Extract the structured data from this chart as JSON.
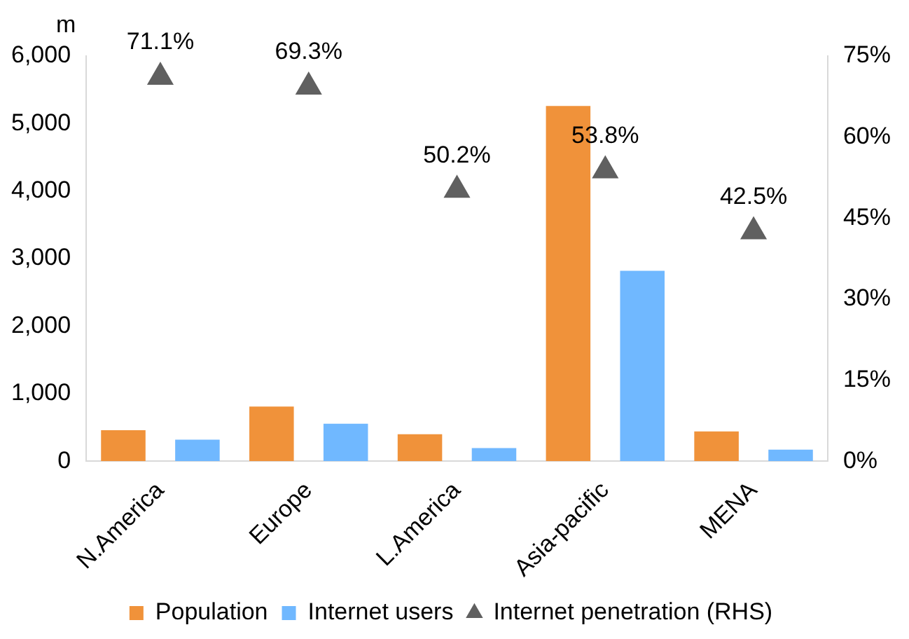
{
  "chart_data": {
    "type": "bar",
    "categories": [
      "N.America",
      "Europe",
      "L.America",
      "Asia-pacific",
      "MENA"
    ],
    "series": [
      {
        "name": "Population",
        "color": "#f0923a",
        "values": [
          460,
          810,
          400,
          5260,
          440
        ]
      },
      {
        "name": "Internet users",
        "color": "#70b8ff",
        "values": [
          320,
          555,
          195,
          2820,
          172
        ]
      },
      {
        "name": "Internet penetration (RHS)",
        "type": "scatter",
        "axis": "y2",
        "marker": "triangle",
        "color": "#606060",
        "x": [
          "N.America",
          "Europe",
          "L.America",
          "Asia-pacific",
          "MENA"
        ],
        "values": [
          71.1,
          69.3,
          50.2,
          53.8,
          42.5
        ],
        "value_labels": [
          "71.1%",
          "69.3%",
          "50.2%",
          "53.8%",
          "42.5%"
        ]
      }
    ],
    "ylim": [
      0,
      6000
    ],
    "yticks": [
      0,
      {
        "value": 1000,
        "label": "1,000"
      },
      {
        "value": 2000,
        "label": "2,000"
      },
      {
        "value": 3000,
        "label": "3,000"
      },
      {
        "value": 4000,
        "label": "4,000"
      },
      {
        "value": 5000,
        "label": "5,000"
      },
      {
        "value": 6000,
        "label": "6,000"
      }
    ],
    "y2lim": [
      0,
      75
    ],
    "y2ticks": [
      {
        "value": 0,
        "label": "0%"
      },
      {
        "value": 15,
        "label": "15%"
      },
      {
        "value": 30,
        "label": "30%"
      },
      {
        "value": 45,
        "label": "45%"
      },
      {
        "value": 60,
        "label": "60%"
      },
      {
        "value": 75,
        "label": "75%"
      }
    ],
    "annotations": [
      "m"
    ],
    "grid": false,
    "legend": "bottom"
  }
}
